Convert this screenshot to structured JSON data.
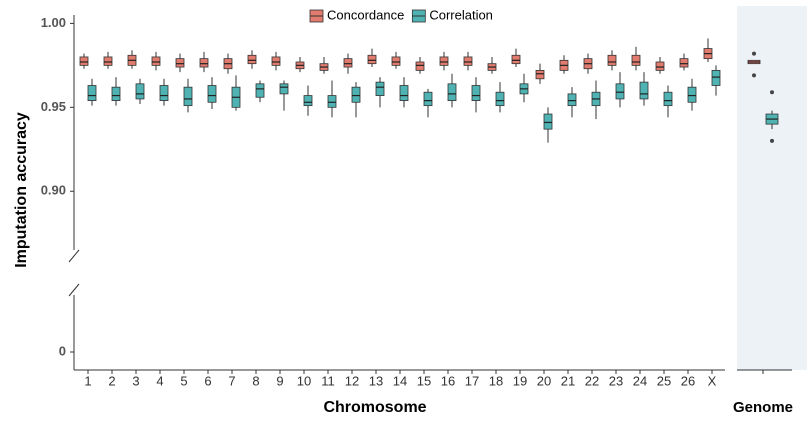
{
  "chart_data": {
    "type": "box",
    "xlabel": "Chromosome",
    "ylabel": "Imputation accuracy",
    "categories": [
      "1",
      "2",
      "3",
      "4",
      "5",
      "6",
      "7",
      "8",
      "9",
      "10",
      "11",
      "12",
      "13",
      "14",
      "15",
      "16",
      "17",
      "18",
      "19",
      "20",
      "21",
      "22",
      "23",
      "24",
      "25",
      "26",
      "X"
    ],
    "ylim": [
      0.865,
      1.005
    ],
    "yticks": [
      {
        "value": 0.9,
        "label": "0.90"
      },
      {
        "value": 0.95,
        "label": "0.95"
      },
      {
        "value": 1.0,
        "label": "1.00"
      }
    ],
    "ylim_lower": [
      -0.012,
      0.038
    ],
    "yticks_lower": [
      0
    ],
    "legend": "top",
    "series": [
      {
        "name": "Concordance",
        "color": "#e07b6e",
        "min": [
          0.973,
          0.973,
          0.973,
          0.972,
          0.971,
          0.971,
          0.97,
          0.973,
          0.972,
          0.971,
          0.97,
          0.97,
          0.974,
          0.973,
          0.97,
          0.972,
          0.972,
          0.97,
          0.974,
          0.964,
          0.97,
          0.97,
          0.972,
          0.972,
          0.97,
          0.972,
          0.977
        ],
        "q1": [
          0.975,
          0.975,
          0.975,
          0.975,
          0.974,
          0.974,
          0.973,
          0.976,
          0.975,
          0.973,
          0.972,
          0.974,
          0.976,
          0.975,
          0.972,
          0.975,
          0.975,
          0.972,
          0.976,
          0.967,
          0.972,
          0.973,
          0.975,
          0.975,
          0.972,
          0.974,
          0.979
        ],
        "median": [
          0.977,
          0.977,
          0.978,
          0.977,
          0.976,
          0.976,
          0.976,
          0.978,
          0.977,
          0.975,
          0.974,
          0.976,
          0.978,
          0.977,
          0.975,
          0.977,
          0.977,
          0.974,
          0.978,
          0.97,
          0.975,
          0.976,
          0.977,
          0.977,
          0.974,
          0.976,
          0.982
        ],
        "q3": [
          0.98,
          0.98,
          0.981,
          0.98,
          0.979,
          0.979,
          0.979,
          0.981,
          0.98,
          0.977,
          0.976,
          0.979,
          0.981,
          0.98,
          0.977,
          0.98,
          0.98,
          0.976,
          0.981,
          0.972,
          0.978,
          0.979,
          0.981,
          0.981,
          0.977,
          0.979,
          0.985
        ],
        "max": [
          0.982,
          0.983,
          0.984,
          0.983,
          0.982,
          0.983,
          0.982,
          0.984,
          0.983,
          0.98,
          0.98,
          0.982,
          0.985,
          0.983,
          0.98,
          0.983,
          0.983,
          0.98,
          0.985,
          0.976,
          0.981,
          0.982,
          0.984,
          0.986,
          0.98,
          0.982,
          0.991
        ]
      },
      {
        "name": "Correlation",
        "color": "#4fb3b3",
        "min": [
          0.951,
          0.951,
          0.952,
          0.951,
          0.947,
          0.949,
          0.948,
          0.953,
          0.948,
          0.945,
          0.944,
          0.944,
          0.95,
          0.95,
          0.944,
          0.95,
          0.947,
          0.947,
          0.953,
          0.929,
          0.944,
          0.943,
          0.95,
          0.951,
          0.944,
          0.948,
          0.957
        ],
        "q1": [
          0.954,
          0.954,
          0.955,
          0.954,
          0.951,
          0.953,
          0.95,
          0.956,
          0.958,
          0.951,
          0.95,
          0.953,
          0.957,
          0.954,
          0.951,
          0.954,
          0.954,
          0.951,
          0.958,
          0.937,
          0.951,
          0.951,
          0.955,
          0.955,
          0.951,
          0.953,
          0.963
        ],
        "median": [
          0.957,
          0.957,
          0.958,
          0.957,
          0.955,
          0.957,
          0.956,
          0.961,
          0.962,
          0.953,
          0.953,
          0.957,
          0.962,
          0.957,
          0.954,
          0.958,
          0.957,
          0.954,
          0.961,
          0.941,
          0.954,
          0.955,
          0.959,
          0.958,
          0.954,
          0.957,
          0.968
        ],
        "q3": [
          0.963,
          0.962,
          0.964,
          0.963,
          0.962,
          0.963,
          0.962,
          0.964,
          0.964,
          0.957,
          0.957,
          0.962,
          0.965,
          0.963,
          0.959,
          0.964,
          0.963,
          0.959,
          0.964,
          0.946,
          0.958,
          0.959,
          0.964,
          0.965,
          0.959,
          0.962,
          0.972
        ],
        "max": [
          0.967,
          0.968,
          0.967,
          0.967,
          0.967,
          0.968,
          0.969,
          0.966,
          0.966,
          0.963,
          0.966,
          0.965,
          0.968,
          0.968,
          0.961,
          0.97,
          0.968,
          0.965,
          0.97,
          0.95,
          0.962,
          0.966,
          0.971,
          0.971,
          0.963,
          0.967,
          0.975
        ]
      }
    ],
    "genome": {
      "label": "Genome",
      "boxes": [
        {
          "min": 0.976,
          "q1": 0.976,
          "median": 0.977,
          "q3": 0.978,
          "max": 0.978,
          "outliers": [
            0.982,
            0.969
          ]
        },
        {
          "min": 0.937,
          "q1": 0.94,
          "median": 0.943,
          "q3": 0.946,
          "max": 0.948,
          "outliers": [
            0.959,
            0.93
          ]
        }
      ]
    }
  }
}
